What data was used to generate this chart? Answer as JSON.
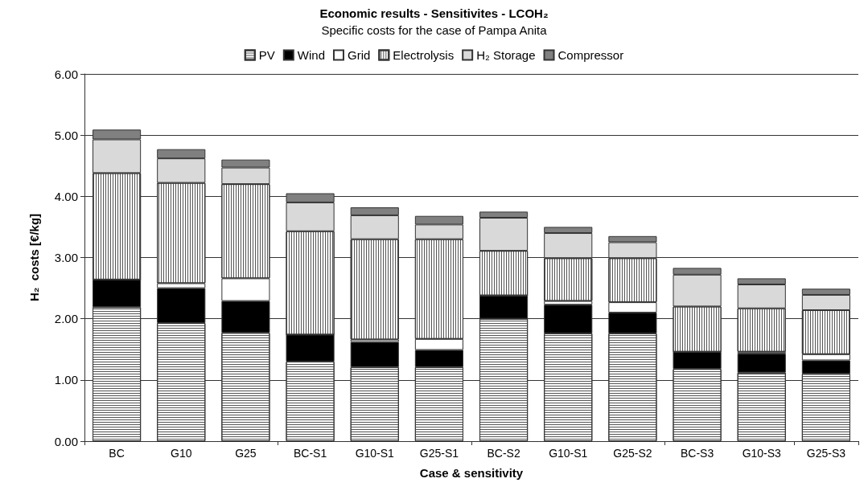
{
  "chart_data": {
    "type": "bar",
    "stacked": true,
    "title": "Economic results - Sensitivites - LCOH₂",
    "subtitle": "Specific costs for the case of Pampa Anita",
    "xlabel": "Case & sensitivity",
    "ylabel": "H₂  costs [€/kg]",
    "categories": [
      "BC",
      "G10",
      "G25",
      "BC-S1",
      "G10-S1",
      "G25-S1",
      "BC-S2",
      "G10-S1",
      "G25-S2",
      "BC-S3",
      "G10-S3",
      "G25-S3"
    ],
    "series": [
      {
        "name": "PV",
        "color": "#ffffff",
        "values": [
          2.19,
          1.93,
          1.77,
          1.3,
          1.21,
          1.21,
          2.0,
          1.76,
          1.76,
          1.18,
          1.12,
          1.1
        ]
      },
      {
        "name": "Wind",
        "color": "#000000",
        "values": [
          0.45,
          0.57,
          0.52,
          0.44,
          0.41,
          0.28,
          0.38,
          0.47,
          0.34,
          0.28,
          0.31,
          0.22
        ]
      },
      {
        "name": "Grid",
        "color": "#ffffff",
        "values": [
          0,
          0.08,
          0.37,
          0,
          0.04,
          0.18,
          0,
          0.06,
          0.17,
          0,
          0.03,
          0.1
        ]
      },
      {
        "name": "Electrolysis",
        "color": "#ffffff",
        "values": [
          1.74,
          1.64,
          1.54,
          1.69,
          1.64,
          1.63,
          0.73,
          0.7,
          0.72,
          0.74,
          0.71,
          0.72
        ]
      },
      {
        "name": "H₂ Storage",
        "color": "#d9d9d9",
        "values": [
          0.55,
          0.4,
          0.27,
          0.47,
          0.39,
          0.24,
          0.54,
          0.41,
          0.26,
          0.52,
          0.39,
          0.25
        ]
      },
      {
        "name": "Compressor",
        "color": "#808080",
        "values": [
          0.16,
          0.15,
          0.13,
          0.15,
          0.13,
          0.14,
          0.1,
          0.1,
          0.1,
          0.11,
          0.1,
          0.1
        ]
      }
    ],
    "ylim": [
      0,
      6
    ],
    "yticks": [
      {
        "value": 0,
        "label": "0.00"
      },
      {
        "value": 1,
        "label": "1.00"
      },
      {
        "value": 2,
        "label": "2.00"
      },
      {
        "value": 3,
        "label": "3.00"
      },
      {
        "value": 4,
        "label": "4.00"
      },
      {
        "value": 5,
        "label": "5.00"
      },
      {
        "value": 6,
        "label": "6.00"
      }
    ],
    "grid": "y",
    "legend": "top"
  }
}
